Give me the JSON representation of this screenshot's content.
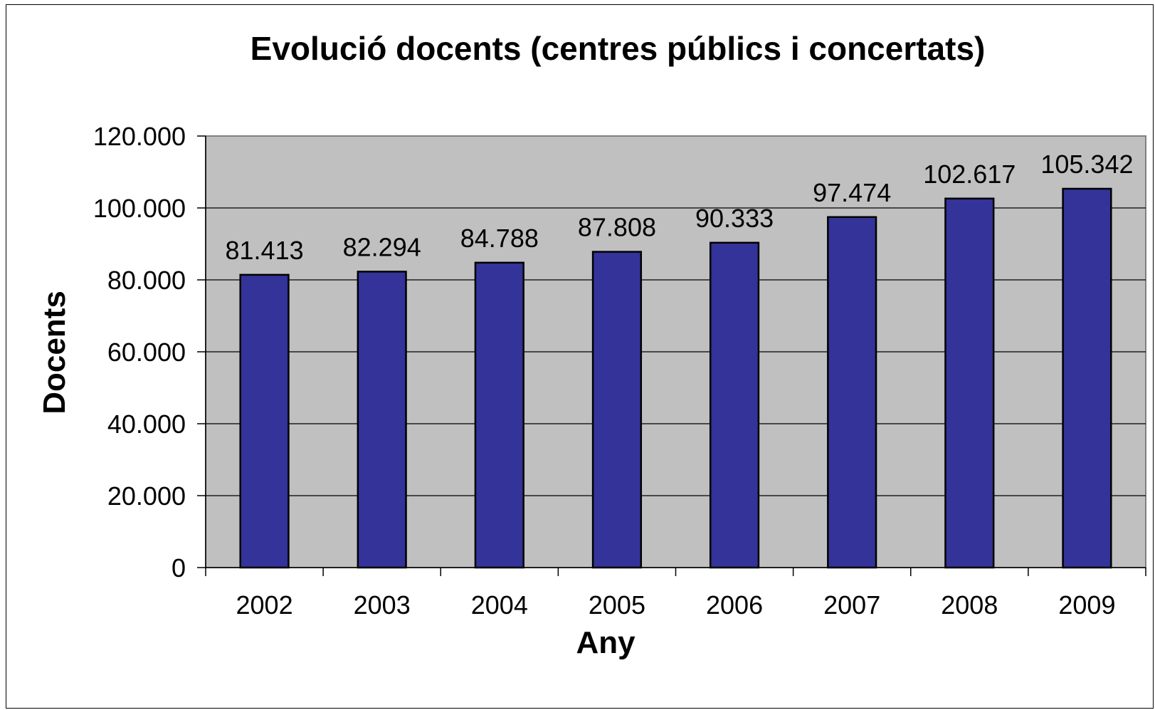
{
  "chart_data": {
    "type": "bar",
    "title": "Evolució docents (centres públics i concertats)",
    "xlabel": "Any",
    "ylabel": "Docents",
    "categories": [
      "2002",
      "2003",
      "2004",
      "2005",
      "2006",
      "2007",
      "2008",
      "2009"
    ],
    "values": [
      81413,
      82294,
      84788,
      87808,
      90333,
      97474,
      102617,
      105342
    ],
    "value_labels": [
      "81.413",
      "82.294",
      "84.788",
      "87.808",
      "90.333",
      "97.474",
      "102.617",
      "105.342"
    ],
    "ylim": [
      0,
      120000
    ],
    "yticks": [
      0,
      20000,
      40000,
      60000,
      80000,
      100000,
      120000
    ],
    "ytick_labels": [
      "0",
      "20.000",
      "40.000",
      "60.000",
      "80.000",
      "100.000",
      "120.000"
    ],
    "grid": true,
    "legend": "none",
    "colors": {
      "bar": "#333399",
      "plot_background": "#c0c0c0",
      "gridline": "#000000"
    }
  }
}
